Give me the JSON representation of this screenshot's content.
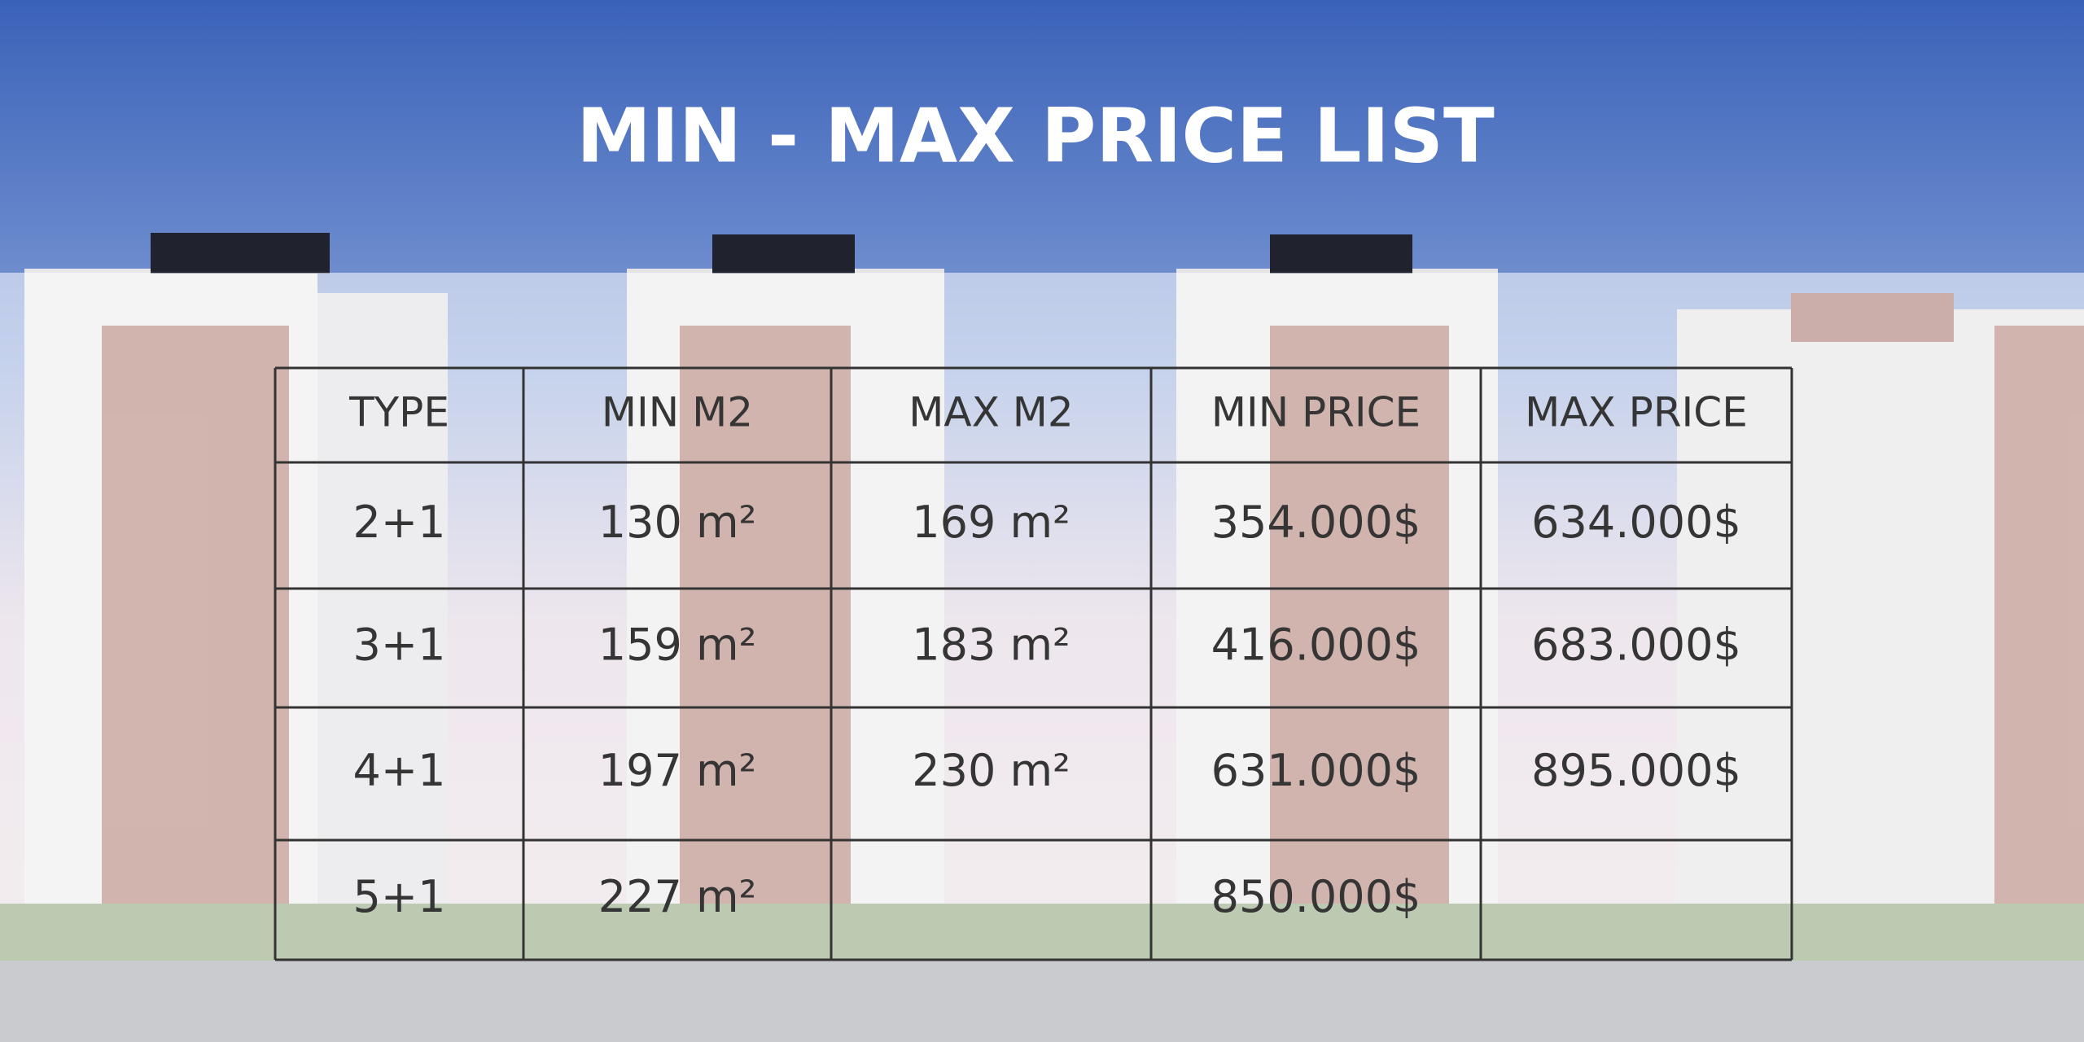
{
  "title": "MIN - MAX PRICE LIST",
  "table": {
    "header": [
      "TYPE",
      "MIN M2",
      "MAX M2",
      "MIN PRICE",
      "MAX PRICE"
    ],
    "rows": [
      [
        "2+1",
        "130 m²",
        "169 m²",
        "354.000$",
        "634.000$"
      ],
      [
        "3+1",
        "159 m²",
        "183 m²",
        "416.000$",
        "683.000$"
      ],
      [
        "4+1",
        "197 m²",
        "230 m²",
        "631.000$",
        "895.000$"
      ],
      [
        "5+1",
        "227 m²",
        null,
        "850.000$",
        null
      ]
    ]
  }
}
